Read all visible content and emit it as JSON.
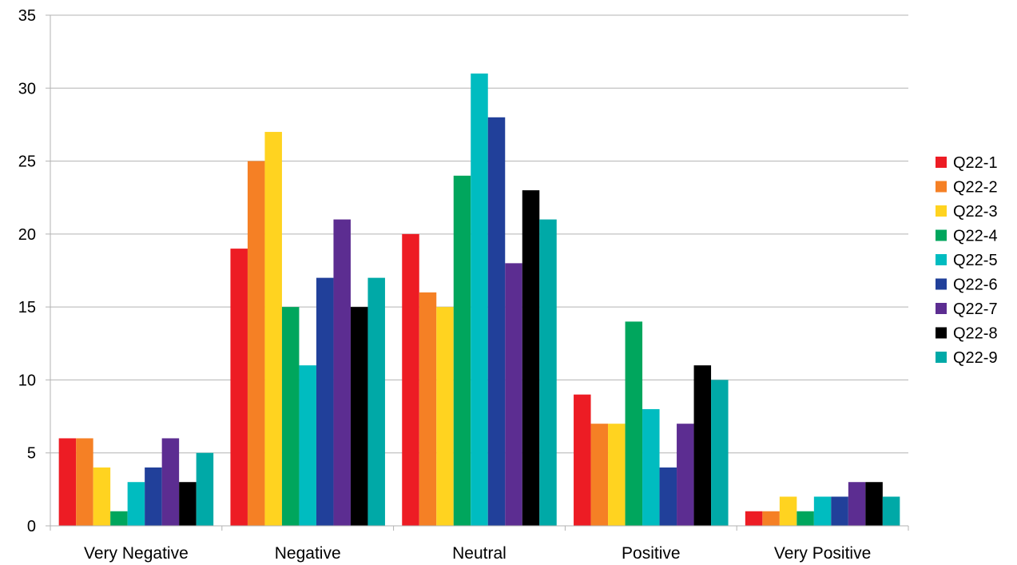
{
  "chart_data": {
    "type": "bar",
    "title": "",
    "xlabel": "",
    "ylabel": "",
    "categories": [
      "Very Negative",
      "Negative",
      "Neutral",
      "Positive",
      "Very Positive"
    ],
    "ylim": [
      0,
      35
    ],
    "yticks": [
      0,
      5,
      10,
      15,
      20,
      25,
      30,
      35
    ],
    "grid": "horizontal",
    "legend_position": "right",
    "series": [
      {
        "name": "Q22-1",
        "color": "#ed1c24",
        "values": [
          6,
          19,
          20,
          9,
          1
        ]
      },
      {
        "name": "Q22-2",
        "color": "#f58025",
        "values": [
          6,
          25,
          16,
          7,
          1
        ]
      },
      {
        "name": "Q22-3",
        "color": "#ffd320",
        "values": [
          4,
          27,
          15,
          7,
          2
        ]
      },
      {
        "name": "Q22-4",
        "color": "#00a65d",
        "values": [
          1,
          15,
          24,
          14,
          1
        ]
      },
      {
        "name": "Q22-5",
        "color": "#00bcc0",
        "values": [
          3,
          11,
          31,
          8,
          2
        ]
      },
      {
        "name": "Q22-6",
        "color": "#21409a",
        "values": [
          4,
          17,
          28,
          4,
          2
        ]
      },
      {
        "name": "Q22-7",
        "color": "#5c2d91",
        "values": [
          6,
          21,
          18,
          7,
          3
        ]
      },
      {
        "name": "Q22-8",
        "color": "#000000",
        "values": [
          3,
          15,
          23,
          11,
          3
        ]
      },
      {
        "name": "Q22-9",
        "color": "#00a9a7",
        "values": [
          5,
          17,
          21,
          10,
          2
        ]
      }
    ]
  }
}
